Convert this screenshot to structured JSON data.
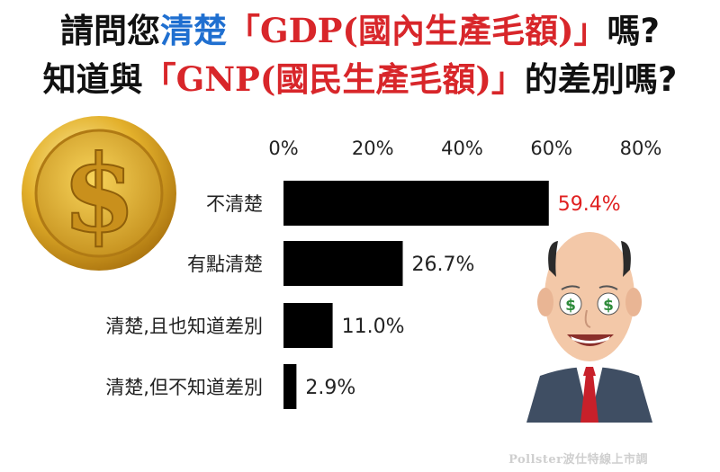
{
  "title": {
    "line1": [
      {
        "text": "請問您",
        "style": "black"
      },
      {
        "text": "清楚",
        "style": "blue"
      },
      {
        "text": "「GDP(國內生產毛額)」",
        "style": "red"
      },
      {
        "text": "嗎?",
        "style": "black"
      }
    ],
    "line2": [
      {
        "text": "知道與",
        "style": "black"
      },
      {
        "text": "「GNP(國民生產毛額)」",
        "style": "red"
      },
      {
        "text": "的差別嗎?",
        "style": "black"
      }
    ]
  },
  "chart_data": {
    "type": "bar",
    "orientation": "horizontal",
    "categories": [
      "不清楚",
      "有點清楚",
      "清楚,且也知道差別",
      "清楚,但不知道差別"
    ],
    "values": [
      59.4,
      26.7,
      11.0,
      2.9
    ],
    "value_labels": [
      "59.4%",
      "26.7%",
      "11.0%",
      "2.9%"
    ],
    "highlight_index": 0,
    "xlim": [
      0,
      80
    ],
    "xticks": [
      0,
      20,
      40,
      60,
      80
    ],
    "xtick_labels": [
      "0%",
      "20%",
      "40%",
      "60%",
      "80%"
    ],
    "axis_position": "top",
    "grid": false,
    "colors": {
      "bar": "#000000",
      "highlight_label": "#e02020"
    }
  },
  "decorations": {
    "left_icon": "gold-dollar-coin-icon",
    "right_icon": "businessman-dollar-eyes-icon"
  },
  "credit": "Pollster波仕特線上市調"
}
